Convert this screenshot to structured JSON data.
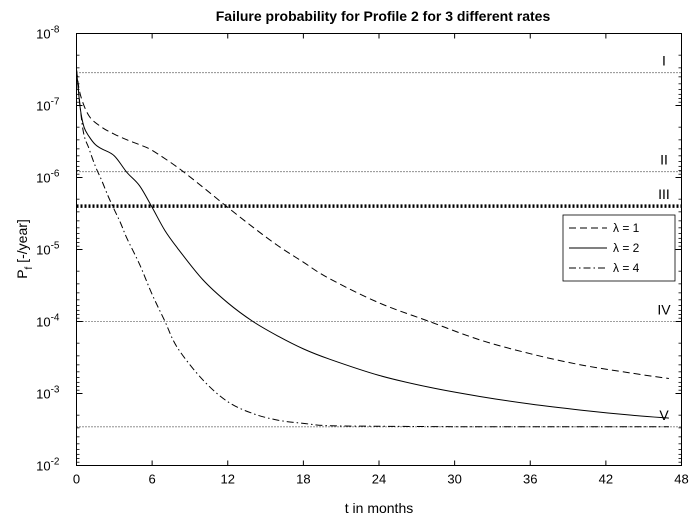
{
  "chart_data": {
    "type": "line",
    "title": "Failure probability for Profile 2 for 3 different rates",
    "xlabel": "t in months",
    "ylabel": "P_f [-/year]",
    "ylabel_main": "P",
    "ylabel_sub": "f",
    "ylabel_rest": " [-/year]",
    "y_scale": "log",
    "y_axis_reversed": true,
    "xlim": [
      0,
      48
    ],
    "ylim": [
      1e-08,
      0.01
    ],
    "x_ticks": [
      0,
      6,
      12,
      18,
      24,
      30,
      36,
      42,
      48
    ],
    "y_ticks": [
      {
        "value": 1e-08,
        "base": "10",
        "exp": "-8"
      },
      {
        "value": 1e-07,
        "base": "10",
        "exp": "-7"
      },
      {
        "value": 1e-06,
        "base": "10",
        "exp": "-6"
      },
      {
        "value": 1e-05,
        "base": "10",
        "exp": "-5"
      },
      {
        "value": 0.0001,
        "base": "10",
        "exp": "-4"
      },
      {
        "value": 0.001,
        "base": "10",
        "exp": "-3"
      },
      {
        "value": 0.01,
        "base": "10",
        "exp": "-2"
      }
    ],
    "grid": false,
    "legend_position": "right",
    "thresholds": [
      {
        "label": "I",
        "value": 3.5e-08,
        "style": "dotted-thin"
      },
      {
        "label": "II",
        "value": 8.3e-07,
        "style": "dotted-thin"
      },
      {
        "label": "III",
        "value": 2.5e-06,
        "style": "dotted-thick"
      },
      {
        "label": "IV",
        "value": 0.0001,
        "style": "dotted-thin"
      },
      {
        "label": "V",
        "value": 0.0029,
        "style": "dotted-thin"
      }
    ],
    "series": [
      {
        "name": "λ = 1",
        "dash": "dashed",
        "x": [
          0,
          0.3,
          1,
          2,
          3,
          4,
          5,
          6,
          8,
          10,
          12,
          14,
          16,
          18,
          20,
          24,
          28,
          32,
          36,
          40,
          44,
          47
        ],
        "y": [
          3.2e-08,
          7e-08,
          1.4e-07,
          2e-07,
          2.5e-07,
          3e-07,
          3.5e-07,
          4.2e-07,
          7.2e-07,
          1.35e-06,
          2.6e-06,
          4.9e-06,
          8.9e-06,
          1.5e-05,
          2.5e-05,
          5.5e-05,
          0.0001,
          0.00018,
          0.00028,
          0.0004,
          0.00052,
          0.00062
        ]
      },
      {
        "name": "λ = 2",
        "dash": "solid",
        "x": [
          0,
          0.3,
          0.6,
          1,
          1.5,
          2,
          3,
          4,
          5,
          6,
          7,
          8,
          10,
          12,
          14,
          16,
          18,
          20,
          24,
          28,
          32,
          36,
          40,
          44,
          47
        ],
        "y": [
          3.2e-08,
          1.1e-07,
          2e-07,
          2.7e-07,
          3.5e-07,
          4e-07,
          5e-07,
          8.5e-07,
          1.3e-06,
          2.6e-06,
          5.4e-06,
          9.5e-06,
          2.6e-05,
          5.5e-05,
          0.0001,
          0.00016,
          0.00024,
          0.00033,
          0.00056,
          0.00082,
          0.0011,
          0.0014,
          0.0017,
          0.002,
          0.0022
        ]
      },
      {
        "name": "λ = 4",
        "dash": "dash-dot",
        "x": [
          0,
          0.5,
          1,
          1.5,
          2,
          2.5,
          3,
          3.5,
          4,
          5,
          6,
          7,
          8,
          10,
          12,
          14,
          16,
          18,
          20,
          24,
          28,
          32,
          36,
          40,
          44,
          47
        ],
        "y": [
          3.2e-08,
          2.1e-07,
          4e-07,
          7e-07,
          1.1e-06,
          1.8e-06,
          2.8e-06,
          4.3e-06,
          7e-06,
          1.6e-05,
          4.2e-05,
          9.8e-05,
          0.00023,
          0.00064,
          0.0013,
          0.0019,
          0.00235,
          0.0026,
          0.0028,
          0.00285,
          0.00288,
          0.0029,
          0.0029,
          0.0029,
          0.0029,
          0.0029
        ]
      }
    ]
  }
}
